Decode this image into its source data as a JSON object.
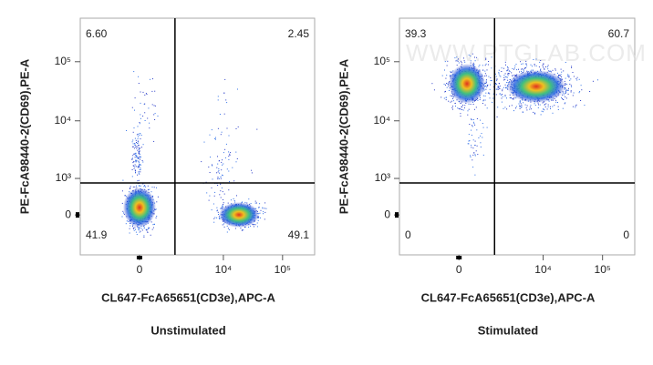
{
  "chart_data": [
    {
      "type": "density",
      "subtitle": "Unstimulated",
      "x_label": "CL647-FcA65651(CD3e),APC-A",
      "y_label": "PE-FcA98440-2(CD69),PE-A",
      "xscale": {
        "type": "biexponential",
        "width": 768
      },
      "yscale": {
        "type": "biexponential",
        "width": 513
      },
      "xlim": [
        -3800,
        348000
      ],
      "ylim": [
        -1160,
        544000
      ],
      "xticks": [
        0,
        {
          "value": 10000,
          "label": "10⁴"
        },
        {
          "value": 100000,
          "label": "10⁵"
        }
      ],
      "yticks": [
        0,
        {
          "value": 1000,
          "label": "10³"
        },
        {
          "value": 10000,
          "label": "10⁴"
        },
        {
          "value": 100000,
          "label": "10⁵"
        }
      ],
      "gate": {
        "x": 1430,
        "y": 815
      },
      "quadrants": [
        {
          "value": 6.6,
          "label": "6.60"
        },
        2.45,
        41.9,
        49.1
      ]
    },
    {
      "type": "density",
      "subtitle": "Stimulated",
      "watermark": "WWW.PTGLAB.COM",
      "x_label": "CL647-FcA65651(CD3e),APC-A",
      "y_label": "PE-FcA98440-2(CD69),PE-A",
      "xscale": {
        "type": "biexponential",
        "width": 768
      },
      "yscale": {
        "type": "biexponential",
        "width": 513
      },
      "xlim": [
        -3800,
        348000
      ],
      "ylim": [
        -1160,
        544000
      ],
      "xticks": [
        0,
        {
          "value": 10000,
          "label": "10⁴"
        },
        {
          "value": 100000,
          "label": "10⁵"
        }
      ],
      "yticks": [
        0,
        {
          "value": 1000,
          "label": "10³"
        },
        {
          "value": 10000,
          "label": "10⁴"
        },
        {
          "value": 100000,
          "label": "10⁵"
        }
      ],
      "gate": {
        "x": 1430,
        "y": 815
      },
      "quadrants": [
        39.3,
        60.7,
        0,
        0
      ]
    }
  ]
}
